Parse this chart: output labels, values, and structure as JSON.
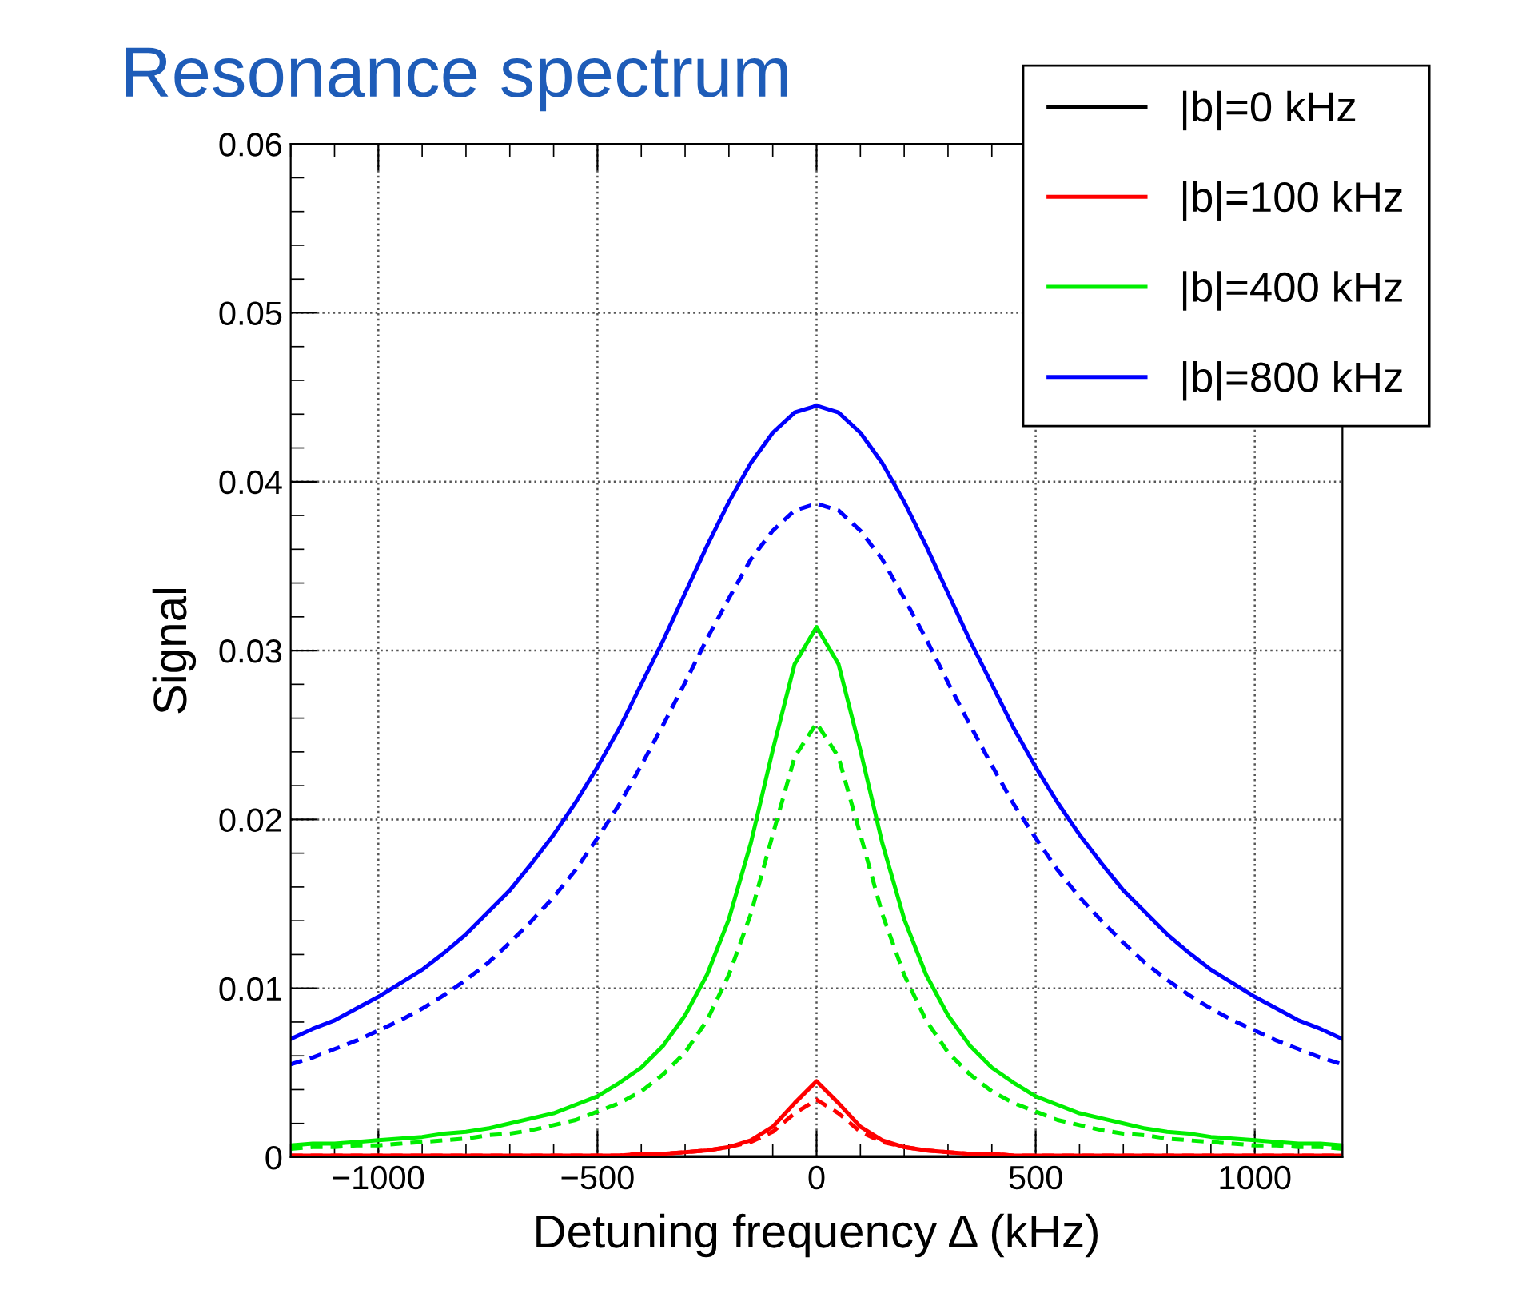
{
  "chart_data": {
    "type": "line",
    "title": "Resonance spectrum",
    "xlabel": "Detuning frequency Δ (kHz)",
    "ylabel": "Signal",
    "x": [
      -1200,
      -1150,
      -1100,
      -1050,
      -1000,
      -950,
      -900,
      -850,
      -800,
      -750,
      -700,
      -650,
      -600,
      -550,
      -500,
      -450,
      -400,
      -350,
      -300,
      -250,
      -200,
      -150,
      -100,
      -50,
      0,
      50,
      100,
      150,
      200,
      250,
      300,
      350,
      400,
      450,
      500,
      550,
      600,
      650,
      700,
      750,
      800,
      850,
      900,
      950,
      1000,
      1050,
      1100,
      1150,
      1200
    ],
    "series": [
      {
        "name": "|b|=0 kHz",
        "color": "#000000",
        "line_style": "solid",
        "values": [
          0,
          0,
          0,
          0,
          0,
          0,
          0,
          0,
          0,
          0,
          0,
          0,
          0,
          0,
          0,
          0,
          0,
          0,
          0,
          0,
          0,
          0,
          0,
          0,
          0,
          0,
          0,
          0,
          0,
          0,
          0,
          0,
          0,
          0,
          0,
          0,
          0,
          0,
          0,
          0,
          0,
          0,
          0,
          0,
          0,
          0,
          0,
          0,
          0
        ]
      },
      {
        "name": "|b|=100 kHz",
        "color": "#ff0000",
        "line_style": "solid",
        "values": [
          0.0001,
          0.0001,
          0.0001,
          0.0001,
          0.0001,
          0.0001,
          0.0001,
          0.0001,
          0.0001,
          0.0001,
          0.0001,
          0.0001,
          0.0001,
          0.0001,
          0.0001,
          0.0001,
          0.0002,
          0.0002,
          0.0003,
          0.0004,
          0.0006,
          0.001,
          0.0018,
          0.0032,
          0.0045,
          0.0032,
          0.0018,
          0.001,
          0.0006,
          0.0004,
          0.0003,
          0.0002,
          0.0002,
          0.0001,
          0.0001,
          0.0001,
          0.0001,
          0.0001,
          0.0001,
          0.0001,
          0.0001,
          0.0001,
          0.0001,
          0.0001,
          0.0001,
          0.0001,
          0.0001,
          0.0001,
          0.0001
        ]
      },
      {
        "color": "#ff0000",
        "line_style": "dashed",
        "values": [
          0.0001,
          0.0001,
          0.0001,
          0.0001,
          0.0001,
          0.0001,
          0.0001,
          0.0001,
          0.0001,
          0.0001,
          0.0001,
          0.0001,
          0.0001,
          0.0001,
          0.0001,
          0.0001,
          0.0002,
          0.0002,
          0.0003,
          0.0004,
          0.0006,
          0.0009,
          0.0015,
          0.0026,
          0.0034,
          0.0026,
          0.0015,
          0.0009,
          0.0006,
          0.0004,
          0.0003,
          0.0002,
          0.0002,
          0.0001,
          0.0001,
          0.0001,
          0.0001,
          0.0001,
          0.0001,
          0.0001,
          0.0001,
          0.0001,
          0.0001,
          0.0001,
          0.0001,
          0.0001,
          0.0001,
          0.0001,
          0.0001
        ]
      },
      {
        "name": "|b|=400 kHz",
        "color": "#00ee00",
        "line_style": "solid",
        "values": [
          0.0007,
          0.0008,
          0.0008,
          0.0009,
          0.001,
          0.0011,
          0.0012,
          0.0014,
          0.0015,
          0.0017,
          0.002,
          0.0023,
          0.0026,
          0.0031,
          0.0036,
          0.0044,
          0.0053,
          0.0066,
          0.0084,
          0.0108,
          0.0141,
          0.0186,
          0.0241,
          0.0292,
          0.0314,
          0.0292,
          0.0241,
          0.0186,
          0.0141,
          0.0108,
          0.0084,
          0.0066,
          0.0053,
          0.0044,
          0.0036,
          0.0031,
          0.0026,
          0.0023,
          0.002,
          0.0017,
          0.0015,
          0.0014,
          0.0012,
          0.0011,
          0.001,
          0.0009,
          0.0008,
          0.0008,
          0.0007
        ]
      },
      {
        "color": "#00ee00",
        "line_style": "dashed",
        "values": [
          0.0005,
          0.0006,
          0.0006,
          0.0007,
          0.0007,
          0.0008,
          0.0009,
          0.001,
          0.0011,
          0.0013,
          0.0014,
          0.0016,
          0.0019,
          0.0022,
          0.0027,
          0.0032,
          0.0039,
          0.0049,
          0.0062,
          0.0081,
          0.0108,
          0.0144,
          0.0191,
          0.0237,
          0.0257,
          0.0237,
          0.0191,
          0.0144,
          0.0108,
          0.0081,
          0.0062,
          0.0049,
          0.0039,
          0.0032,
          0.0027,
          0.0022,
          0.0019,
          0.0016,
          0.0014,
          0.0013,
          0.0011,
          0.001,
          0.0009,
          0.0008,
          0.0007,
          0.0007,
          0.0006,
          0.0006,
          0.0005
        ]
      },
      {
        "name": "|b|=800 kHz",
        "color": "#0000ff",
        "line_style": "solid",
        "values": [
          0.007,
          0.0076,
          0.0081,
          0.0088,
          0.0095,
          0.0103,
          0.0111,
          0.0121,
          0.0132,
          0.0145,
          0.0158,
          0.0174,
          0.0191,
          0.021,
          0.0231,
          0.0254,
          0.028,
          0.0306,
          0.0334,
          0.0362,
          0.0388,
          0.0411,
          0.0429,
          0.0441,
          0.0445,
          0.0441,
          0.0429,
          0.0411,
          0.0388,
          0.0362,
          0.0334,
          0.0306,
          0.028,
          0.0254,
          0.0231,
          0.021,
          0.0191,
          0.0174,
          0.0158,
          0.0145,
          0.0132,
          0.0121,
          0.0111,
          0.0103,
          0.0095,
          0.0088,
          0.0081,
          0.0076,
          0.007
        ]
      },
      {
        "color": "#0000ff",
        "line_style": "dashed",
        "values": [
          0.0055,
          0.0059,
          0.0064,
          0.0069,
          0.0075,
          0.0081,
          0.0088,
          0.0096,
          0.0105,
          0.0115,
          0.0127,
          0.014,
          0.0154,
          0.017,
          0.0189,
          0.0209,
          0.0232,
          0.0256,
          0.0281,
          0.0307,
          0.0331,
          0.0354,
          0.0371,
          0.0383,
          0.0387,
          0.0383,
          0.0371,
          0.0354,
          0.0331,
          0.0307,
          0.0281,
          0.0256,
          0.0232,
          0.0209,
          0.0189,
          0.017,
          0.0154,
          0.014,
          0.0127,
          0.0115,
          0.0105,
          0.0096,
          0.0088,
          0.0081,
          0.0075,
          0.0069,
          0.0064,
          0.0059,
          0.0055
        ]
      }
    ],
    "xlim": [
      -1200,
      1200
    ],
    "ylim": [
      0,
      0.06
    ],
    "xticks": [
      {
        "value": -1000,
        "label": "−1000"
      },
      {
        "value": -500,
        "label": "−500"
      },
      0,
      500,
      1000
    ],
    "yticks": [
      0,
      0.01,
      0.02,
      0.03,
      0.04,
      0.05,
      0.06
    ],
    "grid": true,
    "legend": "top right",
    "marker": "none"
  }
}
